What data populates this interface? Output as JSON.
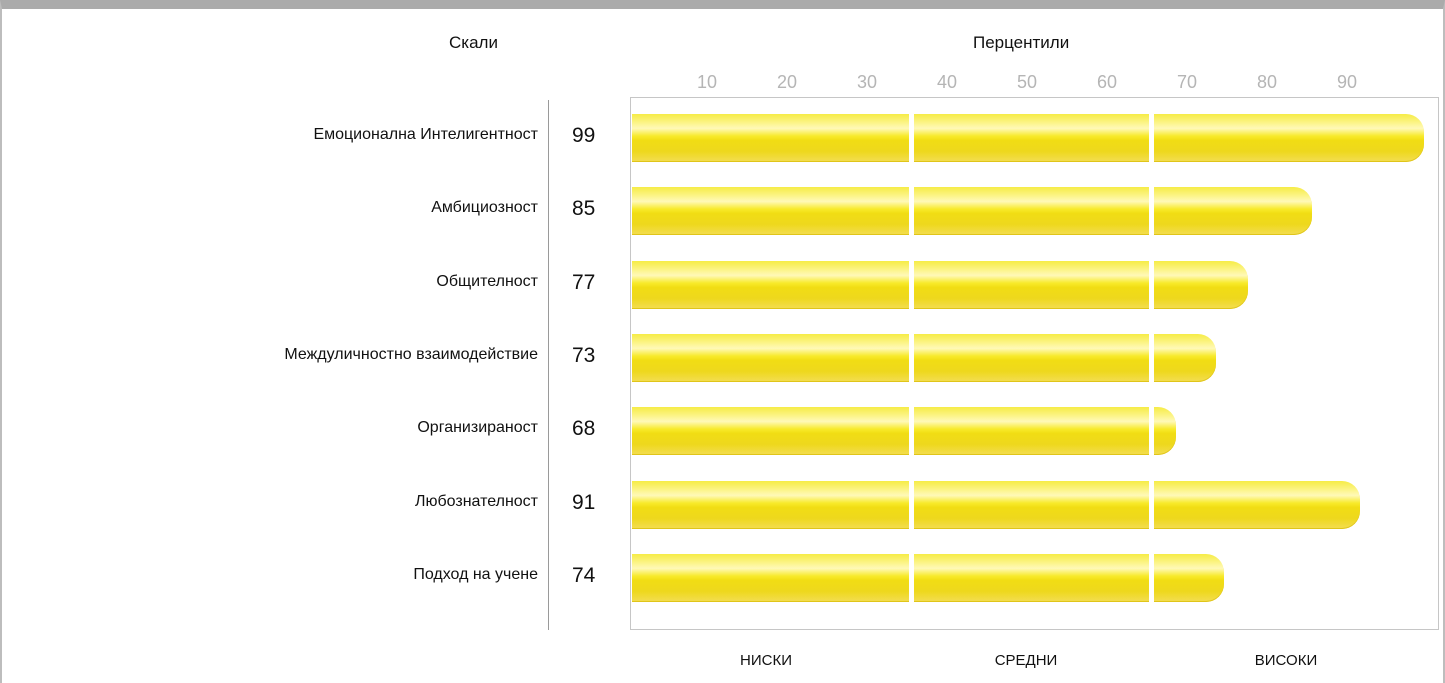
{
  "header": {
    "scales_label": "Скали",
    "percentiles_label": "Перцентили"
  },
  "chart_data": {
    "type": "bar",
    "orientation": "horizontal",
    "xlabel": "Перцентили",
    "ylabel": "Скали",
    "xlim": [
      0,
      100
    ],
    "ticks": [
      "10",
      "20",
      "30",
      "40",
      "50",
      "60",
      "70",
      "80",
      "90"
    ],
    "zone_boundaries": [
      35,
      65
    ],
    "zones": [
      "НИСКИ",
      "СРЕДНИ",
      "ВИСОКИ"
    ],
    "categories": [
      "Емоционална Интелигентност",
      "Амбициозност",
      "Общителност",
      "Междуличностно взаимодействие",
      "Организираност",
      "Любознателност",
      "Подход на учене"
    ],
    "values": [
      99,
      85,
      77,
      73,
      68,
      91,
      74
    ],
    "bar_color": "#f3e21c"
  }
}
